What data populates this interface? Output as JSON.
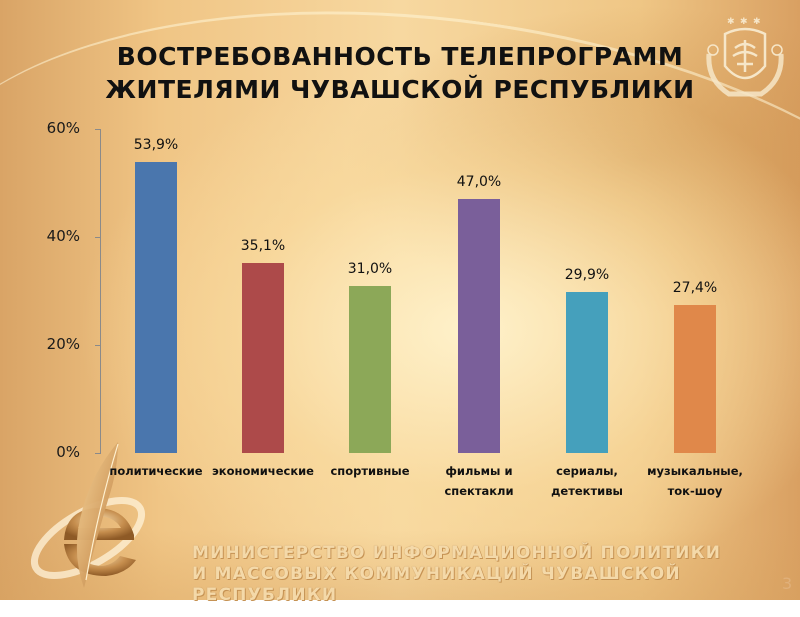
{
  "slide": {
    "title_line1": "ВОСТРЕБОВАННОСТЬ ТЕЛЕПРОГРАММ",
    "title_line2": "ЖИТЕЛЯМИ ЧУВАШСКОЙ РЕСПУБЛИКИ",
    "footer_line1": "МИНИСТЕРСТВО ИНФОРМАЦИОННОЙ ПОЛИТИКИ",
    "footer_line2": "И МАССОВЫХ КОММУНИКАЦИЙ ЧУВАШСКОЙ  РЕСПУБЛИКИ",
    "page_number": "3",
    "emblem_icon": "chuvash-coat-of-arms-icon",
    "logo_icon": "feather-e-logo-icon"
  },
  "chart": {
    "yticks": [
      "0%",
      "20%",
      "40%",
      "60%"
    ],
    "bars": [
      {
        "label_line1": "политические",
        "label_line2": "",
        "value_label": "53,9%",
        "value": 53.9,
        "color": "#4a76ad"
      },
      {
        "label_line1": "экономические",
        "label_line2": "",
        "value_label": "35,1%",
        "value": 35.1,
        "color": "#ad4a4a"
      },
      {
        "label_line1": "спортивные",
        "label_line2": "",
        "value_label": "31,0%",
        "value": 31.0,
        "color": "#8ca858"
      },
      {
        "label_line1": "фильмы и",
        "label_line2": "спектакли",
        "value_label": "47,0%",
        "value": 47.0,
        "color": "#7a5f9a"
      },
      {
        "label_line1": "сериалы,",
        "label_line2": "детективы",
        "value_label": "29,9%",
        "value": 29.9,
        "color": "#45a0bc"
      },
      {
        "label_line1": "музыкальные,",
        "label_line2": "ток-шоу",
        "value_label": "27,4%",
        "value": 27.4,
        "color": "#e0884a"
      }
    ]
  },
  "chart_data": {
    "type": "bar",
    "title": "ВОСТРЕБОВАННОСТЬ ТЕЛЕПРОГРАММ ЖИТЕЛЯМИ ЧУВАШСКОЙ РЕСПУБЛИКИ",
    "categories": [
      "политические",
      "экономические",
      "спортивные",
      "фильмы и спектакли",
      "сериалы, детективы",
      "музыкальные, ток-шоу"
    ],
    "values": [
      53.9,
      35.1,
      31.0,
      47.0,
      29.9,
      27.4
    ],
    "data_labels": [
      "53,9%",
      "35,1%",
      "31,0%",
      "47,0%",
      "29,9%",
      "27,4%"
    ],
    "colors": [
      "#4a76ad",
      "#ad4a4a",
      "#8ca858",
      "#7a5f9a",
      "#45a0bc",
      "#e0884a"
    ],
    "xlabel": "",
    "ylabel": "",
    "ylim": [
      0,
      60
    ],
    "yticks": [
      "0%",
      "20%",
      "40%",
      "60%"
    ],
    "grid": false,
    "legend": "none"
  }
}
